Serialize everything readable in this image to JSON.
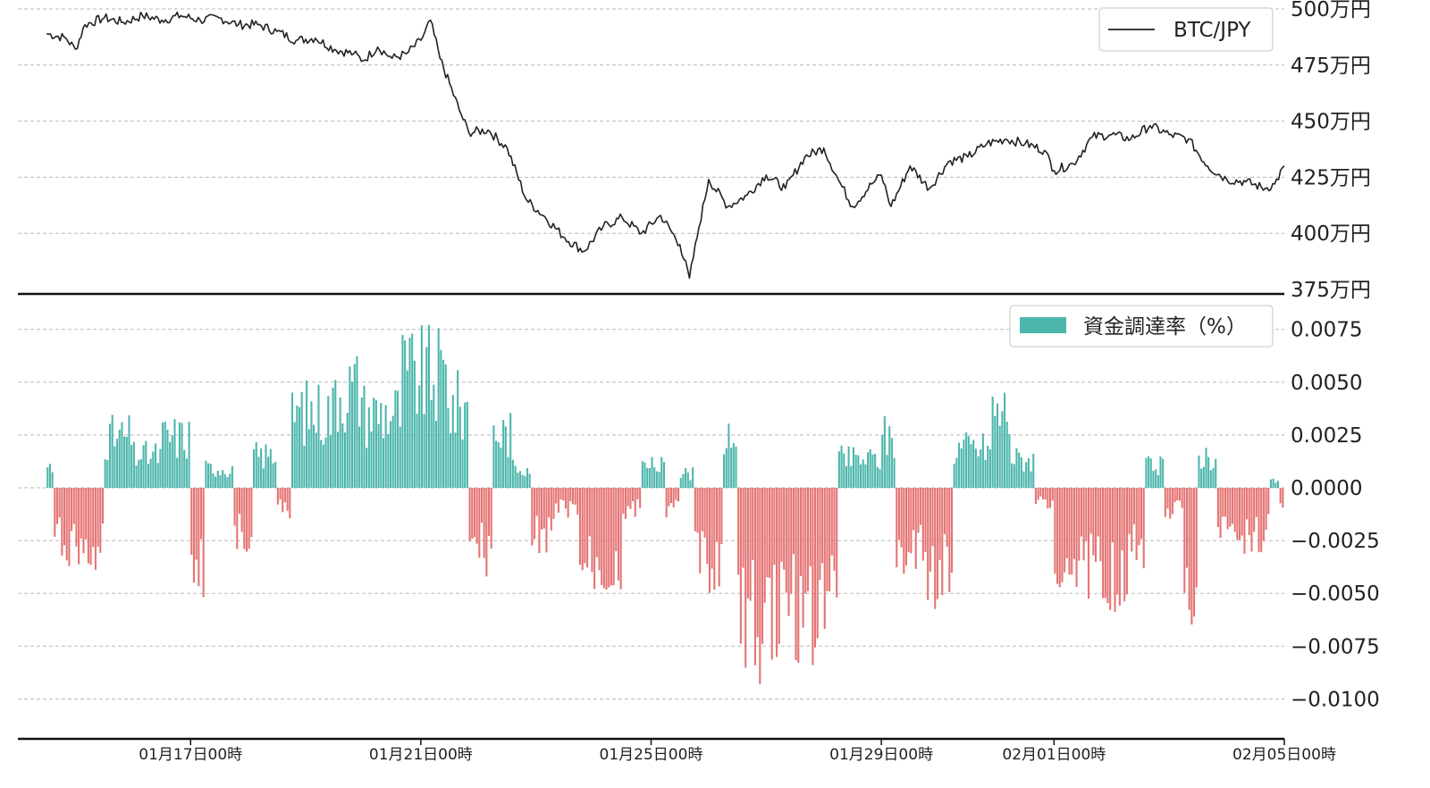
{
  "chart_data": [
    {
      "type": "line",
      "legend": "BTC/JPY",
      "legend_position": "top-right",
      "grid": true,
      "color": "#222222",
      "y_unit": "万円",
      "ylim": [
        375,
        500
      ],
      "yticks": [
        "500万円",
        "475万円",
        "450万円",
        "425万円",
        "400万円",
        "375万円"
      ],
      "x_range": [
        "2020-01-14 00:00",
        "2020-02-05 00:00"
      ],
      "points": [
        [
          "01-14 12:00",
          489
        ],
        [
          "01-14 20:00",
          487
        ],
        [
          "01-15 00:00",
          482
        ],
        [
          "01-15 04:00",
          493
        ],
        [
          "01-15 12:00",
          496
        ],
        [
          "01-15 20:00",
          494
        ],
        [
          "01-16 04:00",
          497
        ],
        [
          "01-16 12:00",
          495
        ],
        [
          "01-16 20:00",
          497
        ],
        [
          "01-17 04:00",
          495
        ],
        [
          "01-17 12:00",
          496
        ],
        [
          "01-17 20:00",
          493
        ],
        [
          "01-18 04:00",
          493
        ],
        [
          "01-18 12:00",
          490
        ],
        [
          "01-18 20:00",
          486
        ],
        [
          "01-19 04:00",
          487
        ],
        [
          "01-19 12:00",
          482
        ],
        [
          "01-19 20:00",
          480
        ],
        [
          "01-20 00:00",
          477
        ],
        [
          "01-20 06:00",
          483
        ],
        [
          "01-20 12:00",
          478
        ],
        [
          "01-20 18:00",
          480
        ],
        [
          "01-21 00:00",
          486
        ],
        [
          "01-21 04:00",
          495
        ],
        [
          "01-21 08:00",
          478
        ],
        [
          "01-21 16:00",
          455
        ],
        [
          "01-21 20:00",
          445
        ],
        [
          "01-22 04:00",
          446
        ],
        [
          "01-22 12:00",
          438
        ],
        [
          "01-22 20:00",
          415
        ],
        [
          "01-23 04:00",
          407
        ],
        [
          "01-23 12:00",
          398
        ],
        [
          "01-23 20:00",
          392
        ],
        [
          "01-24 04:00",
          403
        ],
        [
          "01-24 12:00",
          407
        ],
        [
          "01-24 20:00",
          400
        ],
        [
          "01-25 04:00",
          408
        ],
        [
          "01-25 12:00",
          395
        ],
        [
          "01-25 16:00",
          380
        ],
        [
          "01-25 20:00",
          403
        ],
        [
          "01-26 00:00",
          424
        ],
        [
          "01-26 08:00",
          412
        ],
        [
          "01-26 16:00",
          417
        ],
        [
          "01-27 00:00",
          426
        ],
        [
          "01-27 08:00",
          420
        ],
        [
          "01-27 16:00",
          434
        ],
        [
          "01-28 00:00",
          438
        ],
        [
          "01-28 06:00",
          424
        ],
        [
          "01-28 12:00",
          412
        ],
        [
          "01-28 20:00",
          422
        ],
        [
          "01-29 00:00",
          426
        ],
        [
          "01-29 04:00",
          412
        ],
        [
          "01-29 12:00",
          430
        ],
        [
          "01-29 20:00",
          420
        ],
        [
          "01-30 04:00",
          432
        ],
        [
          "01-30 12:00",
          434
        ],
        [
          "01-30 20:00",
          440
        ],
        [
          "01-31 04:00",
          442
        ],
        [
          "01-31 12:00",
          440
        ],
        [
          "01-31 20:00",
          437
        ],
        [
          "02-01 00:00",
          428
        ],
        [
          "02-01 08:00",
          431
        ],
        [
          "02-01 16:00",
          443
        ],
        [
          "02-02 00:00",
          444
        ],
        [
          "02-02 08:00",
          442
        ],
        [
          "02-02 16:00",
          448
        ],
        [
          "02-03 00:00",
          444
        ],
        [
          "02-03 08:00",
          442
        ],
        [
          "02-03 16:00",
          430
        ],
        [
          "02-04 00:00",
          424
        ],
        [
          "02-04 08:00",
          423
        ],
        [
          "02-04 16:00",
          420
        ],
        [
          "02-04 20:00",
          422
        ],
        [
          "02-05 00:00",
          430
        ]
      ]
    },
    {
      "type": "bar",
      "legend": "資金調達率（%）",
      "legend_position": "top-right",
      "grid": true,
      "positive_color": "#4db6ac",
      "negative_color": "#e57373",
      "ylim": [
        -0.011,
        0.0082
      ],
      "yticks": [
        "0.0075",
        "0.0050",
        "0.0025",
        "0.0000",
        "−0.0025",
        "−0.0050",
        "−0.0075",
        "−0.0100"
      ],
      "x_range": [
        "2020-01-14 00:00",
        "2020-02-05 00:00"
      ],
      "xticks": [
        "01月17日00時",
        "01月21日00時",
        "01月25日00時",
        "01月29日00時",
        "02月01日00時",
        "02月05日00時"
      ],
      "segments": [
        [
          "01-14 12:00",
          "01-14 15:00",
          0.0012
        ],
        [
          "01-14 15:00",
          "01-15 00:00",
          -0.003
        ],
        [
          "01-15 00:00",
          "01-15 12:00",
          -0.0035
        ],
        [
          "01-15 12:00",
          "01-16 00:00",
          0.0028
        ],
        [
          "01-16 00:00",
          "01-16 12:00",
          0.0018
        ],
        [
          "01-16 12:00",
          "01-17 00:00",
          0.0028
        ],
        [
          "01-17 00:00",
          "01-17 06:00",
          -0.0045
        ],
        [
          "01-17 06:00",
          "01-17 18:00",
          0.0011
        ],
        [
          "01-17 18:00",
          "01-18 02:00",
          -0.0025
        ],
        [
          "01-18 02:00",
          "01-18 12:00",
          0.0018
        ],
        [
          "01-18 12:00",
          "01-18 18:00",
          -0.0012
        ],
        [
          "01-18 18:00",
          "01-19 12:00",
          0.0042
        ],
        [
          "01-19 12:00",
          "01-20 00:00",
          0.0055
        ],
        [
          "01-20 00:00",
          "01-20 16:00",
          0.0042
        ],
        [
          "01-20 16:00",
          "01-21 12:00",
          0.0062
        ],
        [
          "01-21 12:00",
          "01-21 20:00",
          0.0045
        ],
        [
          "01-21 20:00",
          "01-22 06:00",
          -0.0035
        ],
        [
          "01-22 06:00",
          "01-22 14:00",
          0.003
        ],
        [
          "01-22 14:00",
          "01-22 22:00",
          0.0012
        ],
        [
          "01-22 22:00",
          "01-23 08:00",
          -0.0025
        ],
        [
          "01-23 08:00",
          "01-23 18:00",
          -0.0012
        ],
        [
          "01-23 18:00",
          "01-24 12:00",
          -0.0045
        ],
        [
          "01-24 12:00",
          "01-24 20:00",
          -0.0012
        ],
        [
          "01-24 20:00",
          "01-25 06:00",
          0.0012
        ],
        [
          "01-25 06:00",
          "01-25 12:00",
          -0.0012
        ],
        [
          "01-25 12:00",
          "01-25 18:00",
          0.0008
        ],
        [
          "01-25 18:00",
          "01-26 06:00",
          -0.004
        ],
        [
          "01-26 06:00",
          "01-26 12:00",
          0.0025
        ],
        [
          "01-26 12:00",
          "01-27 00:00",
          -0.0075
        ],
        [
          "01-27 00:00",
          "01-28 00:00",
          -0.0068
        ],
        [
          "01-28 00:00",
          "01-28 06:00",
          -0.0055
        ],
        [
          "01-28 06:00",
          "01-29 00:00",
          0.0016
        ],
        [
          "01-29 00:00",
          "01-29 06:00",
          0.0028
        ],
        [
          "01-29 06:00",
          "01-29 18:00",
          -0.0038
        ],
        [
          "01-29 18:00",
          "01-30 06:00",
          -0.0048
        ],
        [
          "01-30 06:00",
          "01-30 22:00",
          0.0022
        ],
        [
          "01-30 22:00",
          "01-31 06:00",
          0.0042
        ],
        [
          "01-31 06:00",
          "01-31 16:00",
          0.0016
        ],
        [
          "01-31 16:00",
          "02-01 00:00",
          -0.0008
        ],
        [
          "02-01 00:00",
          "02-01 08:00",
          -0.0038
        ],
        [
          "02-01 08:00",
          "02-01 22:00",
          -0.0042
        ],
        [
          "02-01 22:00",
          "02-02 08:00",
          -0.0048
        ],
        [
          "02-02 08:00",
          "02-02 14:00",
          -0.0032
        ],
        [
          "02-02 14:00",
          "02-02 22:00",
          0.0012
        ],
        [
          "02-02 22:00",
          "02-03 06:00",
          -0.0012
        ],
        [
          "02-03 06:00",
          "02-03 12:00",
          -0.0055
        ],
        [
          "02-03 12:00",
          "02-03 20:00",
          0.0018
        ],
        [
          "02-03 20:00",
          "02-04 04:00",
          -0.002
        ],
        [
          "02-04 04:00",
          "02-04 18:00",
          -0.0025
        ],
        [
          "02-04 18:00",
          "02-04 22:00",
          0.0004
        ],
        [
          "02-04 22:00",
          "02-05 00:00",
          -0.0009
        ]
      ]
    }
  ]
}
